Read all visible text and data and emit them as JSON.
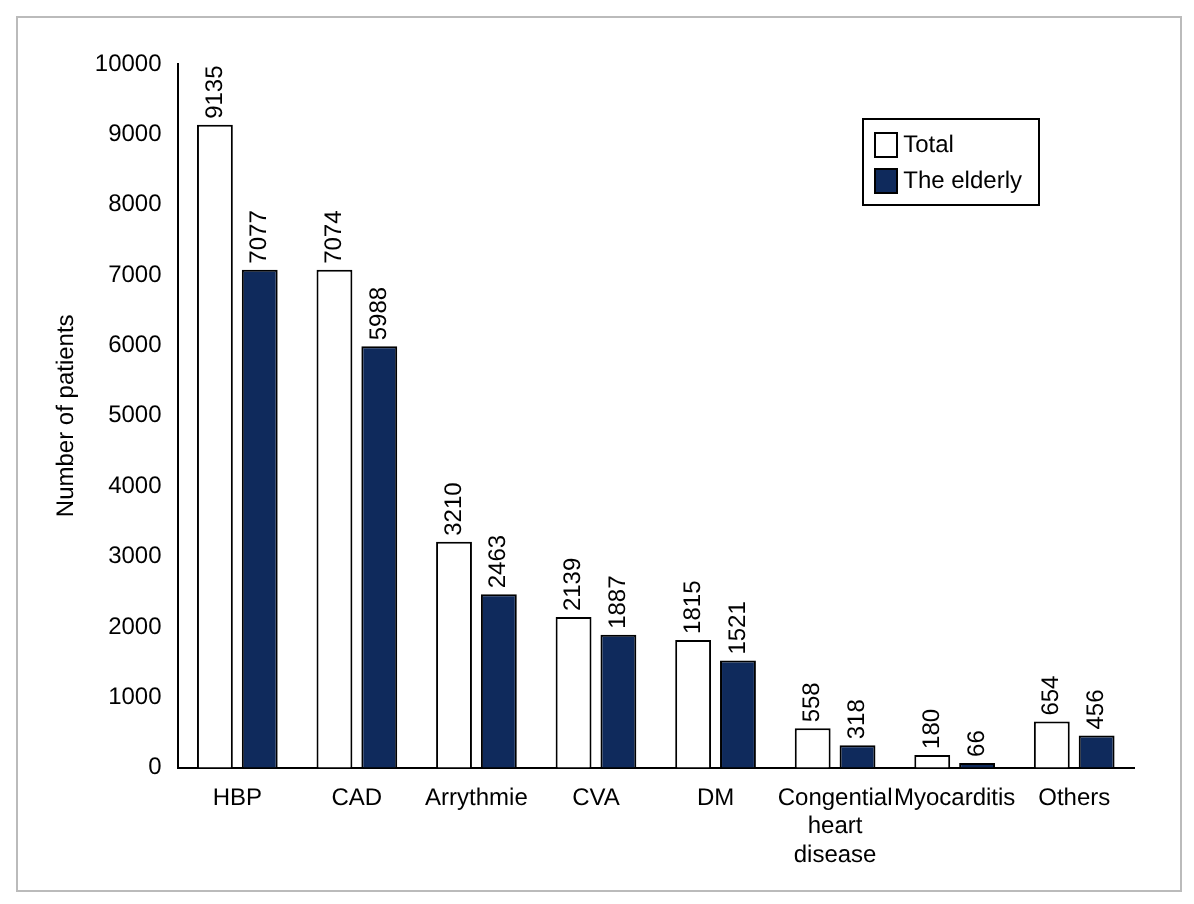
{
  "chart_data": {
    "type": "bar",
    "ylabel": "Number of patients",
    "categories": [
      "HBP",
      "CAD",
      "Arrythmie",
      "CVA",
      "DM",
      "Congential heart disease",
      "Myocarditis",
      "Others"
    ],
    "series": [
      {
        "name": "Total",
        "color": "#ffffff",
        "values": [
          9135,
          7074,
          3210,
          2139,
          1815,
          558,
          180,
          654
        ]
      },
      {
        "name": "The elderly",
        "color": "#0f2a5c",
        "values": [
          7077,
          5988,
          2463,
          1887,
          1521,
          318,
          66,
          456
        ]
      }
    ],
    "ylim": [
      0,
      10000
    ],
    "yticks": [
      0,
      1000,
      2000,
      3000,
      4000,
      5000,
      6000,
      7000,
      8000,
      9000,
      10000
    ],
    "grid": false,
    "legend": "top right",
    "data_labels": true
  }
}
